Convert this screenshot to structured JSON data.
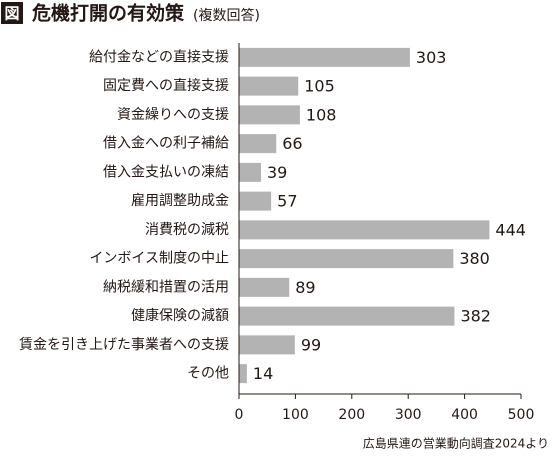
{
  "chart_data": {
    "type": "barh",
    "figure_label": "図",
    "title": "危機打開の有効策",
    "subtitle": "(複数回答)",
    "categories": [
      "給付金などの直接支援",
      "固定費への直接支援",
      "資金繰りへの支援",
      "借入金への利子補給",
      "借入金支払いの凍結",
      "雇用調整助成金",
      "消費税の減税",
      "インボイス制度の中止",
      "納税緩和措置の活用",
      "健康保険の減額",
      "賃金を引き上げた事業者への支援",
      "その他"
    ],
    "values": [
      303,
      105,
      108,
      66,
      39,
      57,
      444,
      380,
      89,
      382,
      99,
      14
    ],
    "color": "#b3b3b3",
    "xlim": [
      0,
      500
    ],
    "xticks": [
      0,
      100,
      200,
      300,
      400,
      500
    ],
    "source": "広島県連の営業動向調査2024より"
  }
}
